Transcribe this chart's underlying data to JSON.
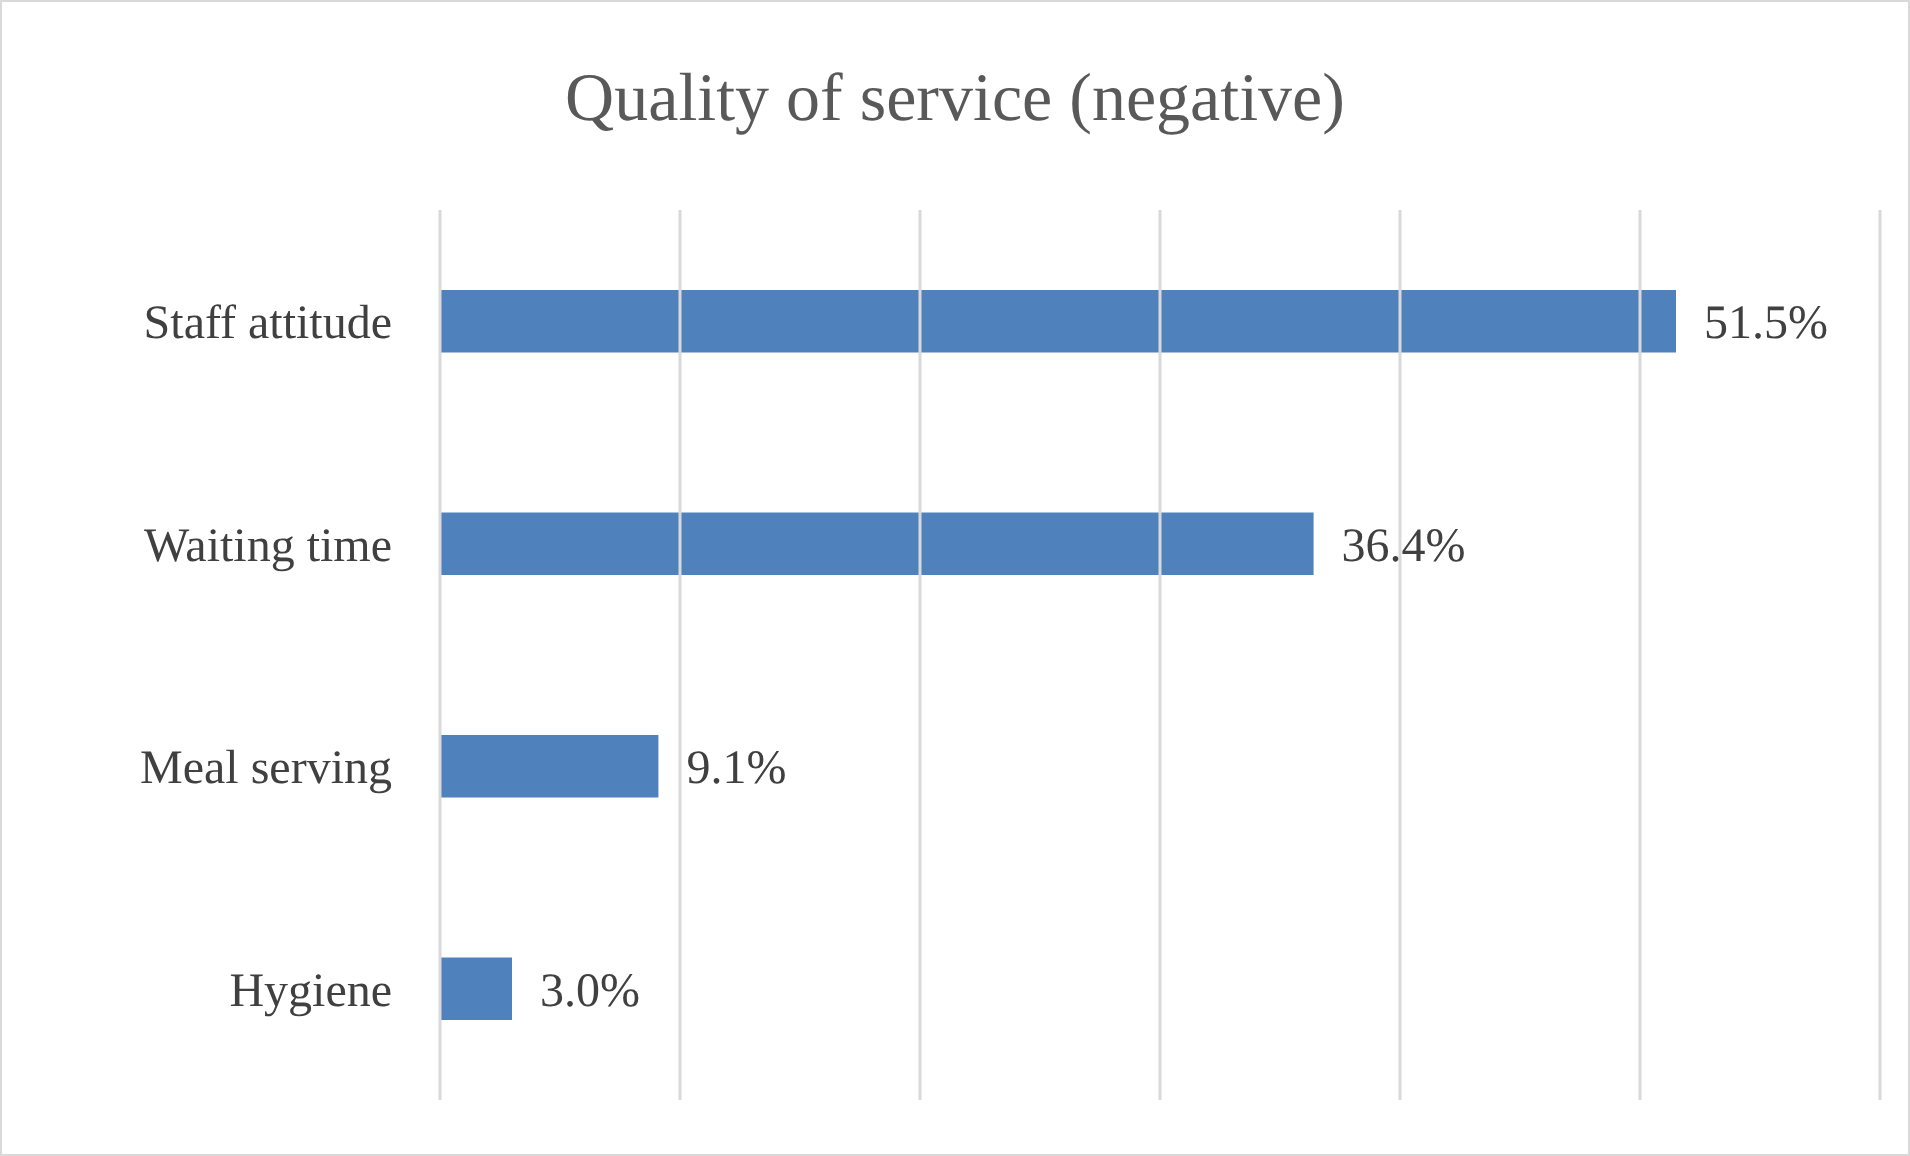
{
  "chart_data": {
    "type": "bar",
    "orientation": "horizontal",
    "title": "Quality of service (negative)",
    "categories": [
      "Staff attitude",
      "Waiting time",
      "Meal serving",
      "Hygiene"
    ],
    "values": [
      51.5,
      36.4,
      9.1,
      3.0
    ],
    "color": "#4f81bd",
    "value_labels": [
      "51.5%",
      "36.4%",
      "9.1%",
      "3.0%"
    ],
    "xlim": [
      0,
      60
    ],
    "xticks": [
      {
        "value": 0,
        "label": null
      },
      {
        "value": 10,
        "label": null
      },
      {
        "value": 20,
        "label": null
      },
      {
        "value": 30,
        "label": null
      },
      {
        "value": 40,
        "label": null
      },
      {
        "value": 50,
        "label": null
      },
      {
        "value": 60,
        "label": null
      }
    ],
    "tick_labels": "y",
    "grid": "x",
    "legend": false
  }
}
